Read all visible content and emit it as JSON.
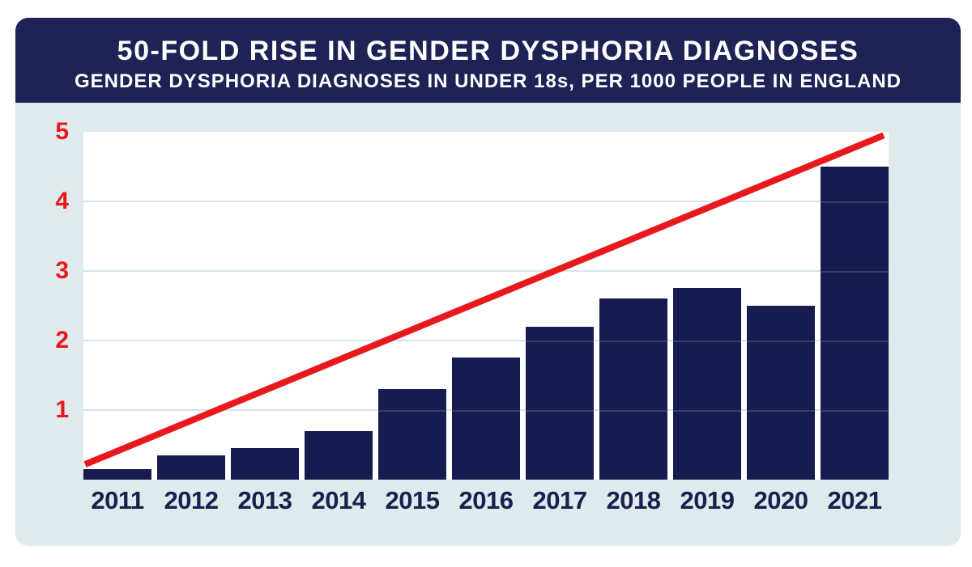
{
  "header": {
    "title": "50-FOLD RISE IN GENDER DYSPHORIA DIAGNOSES",
    "subtitle": "GENDER DYSPHORIA DIAGNOSES IN UNDER 18s, PER 1000 PEOPLE IN ENGLAND"
  },
  "chart_data": {
    "type": "bar",
    "title": "50-FOLD RISE IN GENDER DYSPHORIA DIAGNOSES",
    "subtitle": "GENDER DYSPHORIA DIAGNOSES IN UNDER 18s, PER 1000 PEOPLE IN ENGLAND",
    "categories": [
      "2011",
      "2012",
      "2013",
      "2014",
      "2015",
      "2016",
      "2017",
      "2018",
      "2019",
      "2020",
      "2021"
    ],
    "values": [
      0.15,
      0.35,
      0.45,
      0.7,
      1.3,
      1.75,
      2.2,
      2.6,
      2.75,
      2.5,
      4.5
    ],
    "xlabel": "",
    "ylabel": "",
    "ylim": [
      0,
      5
    ],
    "yticks": [
      1,
      2,
      3,
      4,
      5
    ],
    "grid": true,
    "legend": "none",
    "trend_line": {
      "type": "straight-line-overlay",
      "start_value": 0.22,
      "end_value": 4.95
    }
  },
  "colors": {
    "header_bg": "#1e2254",
    "card_bg": "#e0e9ec",
    "plot_bg": "#ffffff",
    "bar": "#171c50",
    "grid": "#d6e4e9",
    "red": "#e7191d",
    "axis_label_navy": "#1a1f4e",
    "title_text": "#ffffff"
  }
}
